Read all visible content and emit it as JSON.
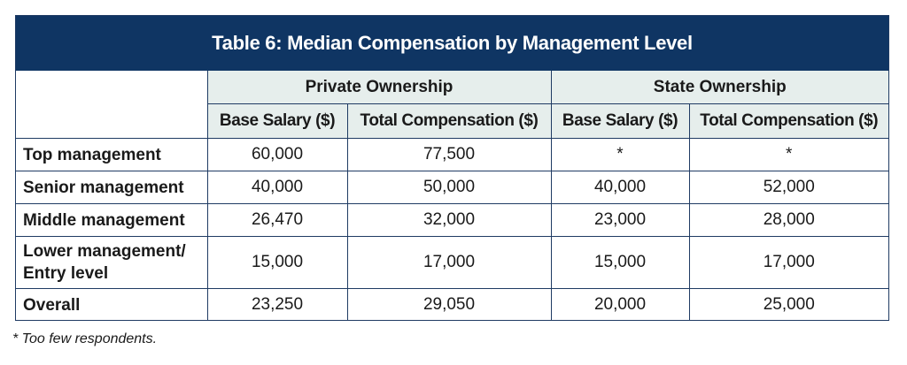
{
  "table": {
    "title": "Table 6: Median Compensation by Management Level",
    "groups": [
      "Private Ownership",
      "State Ownership"
    ],
    "columns": [
      "Base Salary ($)",
      "Total Compensation ($)",
      "Base Salary ($)",
      "Total Compensation ($)"
    ],
    "rows": [
      {
        "label_lines": [
          "Top management"
        ],
        "values": [
          "60,000",
          "77,500",
          "*",
          "*"
        ]
      },
      {
        "label_lines": [
          "Senior management"
        ],
        "values": [
          "40,000",
          "50,000",
          "40,000",
          "52,000"
        ]
      },
      {
        "label_lines": [
          "Middle management"
        ],
        "values": [
          "26,470",
          "32,000",
          "23,000",
          "28,000"
        ]
      },
      {
        "label_lines": [
          "Lower management/",
          "Entry level"
        ],
        "values": [
          "15,000",
          "17,000",
          "15,000",
          "17,000"
        ]
      },
      {
        "label_lines": [
          "Overall"
        ],
        "values": [
          "23,250",
          "29,050",
          "20,000",
          "25,000"
        ]
      }
    ]
  },
  "footnote": "* Too few respondents.",
  "colors": {
    "title_background": "#0f3563",
    "header_background": "#e6eeec",
    "border": "#1f3b63"
  }
}
